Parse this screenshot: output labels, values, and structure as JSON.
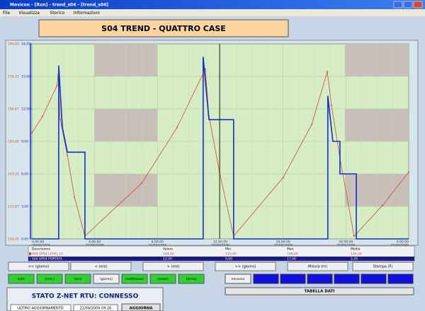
{
  "window": {
    "title": "Movicon - [Run] - trend_s04 - [trend_s04]"
  },
  "menu": [
    "File",
    "Visualizza",
    "Storico",
    "Informazioni"
  ],
  "header": {
    "title": "S04 TREND - QUATTRO CASE"
  },
  "trend": {
    "xlim": [
      0,
      24
    ],
    "xticks": [
      {
        "value": 0,
        "label": "0.00.00"
      },
      {
        "value": 4,
        "label": "4.00.00"
      },
      {
        "value": 8,
        "label": "8.00.00"
      },
      {
        "value": 12,
        "label": "12.00.00"
      },
      {
        "value": 16,
        "label": "16.00.00"
      },
      {
        "value": 20,
        "label": "20.00.00"
      },
      {
        "value": 24,
        "label": "0.00.00"
      }
    ],
    "xtick_dates": [
      "20/09/2009",
      "20/09/2009",
      "20/09/2009",
      "20/09/2009",
      "20/09/2009",
      "20/09/2009",
      "21/09/2009"
    ],
    "ylim": [
      120,
      190
    ],
    "yticks": [
      {
        "value": 120,
        "label": "120,00"
      },
      {
        "value": 131.67,
        "label": "131,67"
      },
      {
        "value": 143.33,
        "label": "143,33"
      },
      {
        "value": 155,
        "label": "155,00"
      },
      {
        "value": 166.67,
        "label": "166,67"
      },
      {
        "value": 178.33,
        "label": "178,33"
      },
      {
        "value": 190,
        "label": "190,00"
      }
    ],
    "y2lim": [
      0,
      18
    ],
    "y2ticks": [
      {
        "value": 0,
        "label": "0,00"
      },
      {
        "value": 3,
        "label": "3,00"
      },
      {
        "value": 6,
        "label": "6,00"
      },
      {
        "value": 9,
        "label": "9,00"
      },
      {
        "value": 12,
        "label": "12,00"
      },
      {
        "value": 15,
        "label": "15,00"
      },
      {
        "value": 18,
        "label": "18,00"
      }
    ],
    "series": [
      {
        "name": "S04 UP04 LEVEL LS",
        "color": "#c8502a",
        "x": [
          0,
          0.68,
          1.6,
          1.67,
          1.8,
          2.26,
          2.71,
          3.38,
          7.0,
          9.25,
          11.05,
          11.28,
          11.95,
          12.85,
          16.0,
          17.82,
          18.81,
          19.08,
          19.62,
          20.52,
          22.33,
          24
        ],
        "values": [
          158,
          164,
          175,
          179,
          163,
          150,
          135,
          121,
          140,
          160,
          181,
          164,
          144,
          121,
          142,
          161,
          180,
          168,
          149,
          121,
          132,
          144
        ]
      },
      {
        "name": "S04 UP04 PORTATA",
        "color": "#1030d0",
        "axis": "y2",
        "x": [
          0,
          1.71,
          1.71,
          1.94,
          2.26,
          3.38,
          3.38,
          10.91,
          10.91,
          11.28,
          12.85,
          12.85,
          18.85,
          18.85,
          19.17,
          19.62,
          19.62,
          20.66,
          20.66,
          24
        ],
        "values": [
          0,
          0,
          16,
          10.3,
          8,
          8,
          0,
          0,
          16.8,
          11,
          11,
          0,
          0,
          13.2,
          9,
          9,
          6,
          6,
          0,
          0
        ]
      }
    ]
  },
  "legend_table": {
    "headers": [
      "Descrizione",
      "Valore",
      "Min.",
      "Max.",
      "Media"
    ],
    "rows": [
      [
        "S04 UP04 LEVEL LS",
        "144,00",
        "120,00",
        "190,00",
        "146,26"
      ],
      [
        "S04 UP04 PORTATA",
        "12,00",
        "0,00",
        "17,00",
        "2,26"
      ]
    ]
  },
  "nav_buttons": [
    "<< (giorno)",
    "< (ore)",
    "> (ore)",
    ">> (giorno)",
    "Misura (m)",
    "Stampa (F)"
  ],
  "range_buttons": [
    "tutti",
    "(min.)",
    "(ore)",
    "(giorno)",
    "(settimana)",
    "(mese)",
    "(anno)"
  ],
  "filter_button": "nessuno",
  "table_button": "TABELLA DATI",
  "status": {
    "title": "STATO Z-NET RTU: CONNESSO",
    "label": "ULTIMO AGGIORNAMENTO",
    "timestamp": "22/09/2009 09.26",
    "button": "AGGIORNA"
  }
}
